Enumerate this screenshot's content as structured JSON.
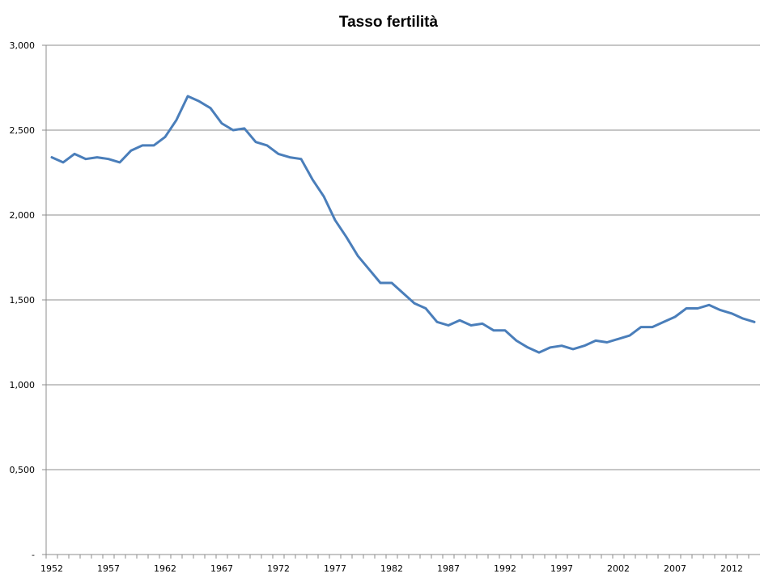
{
  "chart_data": {
    "type": "line",
    "title": "Tasso fertilità",
    "xlabel": "",
    "ylabel": "",
    "ylim": [
      0,
      3
    ],
    "xlim": [
      1952,
      2014
    ],
    "grid": true,
    "legend": "none",
    "y_ticks": [
      {
        "value": 0,
        "label": "-"
      },
      {
        "value": 0.5,
        "label": "0,500"
      },
      {
        "value": 1.0,
        "label": "1,000"
      },
      {
        "value": 1.5,
        "label": "1,500"
      },
      {
        "value": 2.0,
        "label": "2,000"
      },
      {
        "value": 2.5,
        "label": "2,500"
      },
      {
        "value": 3.0,
        "label": "3,000"
      }
    ],
    "x_ticks": [
      {
        "value": 1952,
        "label": "1952"
      },
      {
        "value": 1957,
        "label": "1957"
      },
      {
        "value": 1962,
        "label": "1962"
      },
      {
        "value": 1967,
        "label": "1967"
      },
      {
        "value": 1972,
        "label": "1972"
      },
      {
        "value": 1977,
        "label": "1977"
      },
      {
        "value": 1982,
        "label": "1982"
      },
      {
        "value": 1987,
        "label": "1987"
      },
      {
        "value": 1992,
        "label": "1992"
      },
      {
        "value": 1997,
        "label": "1997"
      },
      {
        "value": 2002,
        "label": "2002"
      },
      {
        "value": 2007,
        "label": "2007"
      },
      {
        "value": 2012,
        "label": "2012"
      }
    ],
    "series": [
      {
        "color": "#4a7eba",
        "x": [
          1952,
          1953,
          1954,
          1955,
          1956,
          1957,
          1958,
          1959,
          1960,
          1961,
          1962,
          1963,
          1964,
          1965,
          1966,
          1967,
          1968,
          1969,
          1970,
          1971,
          1972,
          1973,
          1974,
          1975,
          1976,
          1977,
          1978,
          1979,
          1980,
          1981,
          1982,
          1983,
          1984,
          1985,
          1986,
          1987,
          1988,
          1989,
          1990,
          1991,
          1992,
          1993,
          1994,
          1995,
          1996,
          1997,
          1998,
          1999,
          2000,
          2001,
          2002,
          2003,
          2004,
          2005,
          2006,
          2007,
          2008,
          2009,
          2010,
          2011,
          2012,
          2013,
          2014
        ],
        "values": [
          2.34,
          2.31,
          2.36,
          2.33,
          2.34,
          2.33,
          2.31,
          2.38,
          2.41,
          2.41,
          2.46,
          2.56,
          2.7,
          2.67,
          2.63,
          2.54,
          2.5,
          2.51,
          2.43,
          2.41,
          2.36,
          2.34,
          2.33,
          2.21,
          2.11,
          1.97,
          1.87,
          1.76,
          1.68,
          1.6,
          1.6,
          1.54,
          1.48,
          1.45,
          1.37,
          1.35,
          1.38,
          1.35,
          1.36,
          1.32,
          1.32,
          1.26,
          1.22,
          1.19,
          1.22,
          1.23,
          1.21,
          1.23,
          1.26,
          1.25,
          1.27,
          1.29,
          1.34,
          1.34,
          1.37,
          1.4,
          1.45,
          1.45,
          1.47,
          1.44,
          1.42,
          1.39,
          1.37
        ]
      }
    ]
  }
}
